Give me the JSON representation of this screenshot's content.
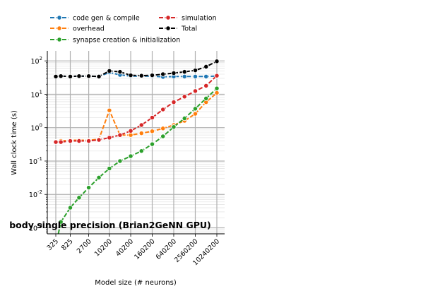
{
  "chart_data": {
    "type": "line",
    "title": "body single precision (Brian2GeNN GPU)",
    "xlabel": "Model size (# neurons)",
    "ylabel": "Wall clock time (s)",
    "x_scale": "log",
    "y_scale": "log",
    "ylim": [
      0.0005,
      200
    ],
    "grid": true,
    "legend_position": "top",
    "x": [
      325,
      450,
      825,
      1450,
      2700,
      5200,
      10200,
      20200,
      40200,
      80200,
      160200,
      320200,
      640200,
      1280200,
      2560200,
      5120200,
      10240200
    ],
    "x_tick_labels": [
      "325",
      "825",
      "2700",
      "10200",
      "40200",
      "160200",
      "640200",
      "2560200",
      "10240200"
    ],
    "y_tick_labels": [
      "10^{-3}",
      "10^{-2}",
      "10^{-1}",
      "10^{0}",
      "10^{1}",
      "10^{2}"
    ],
    "series": [
      {
        "name": "code gen & compile",
        "color": "#1f77b4",
        "values": [
          34,
          35,
          34,
          35,
          35,
          34,
          45,
          38,
          35,
          35,
          35,
          33,
          34,
          34,
          34,
          34,
          35
        ]
      },
      {
        "name": "overhead",
        "color": "#ff7f0e",
        "values": [
          0.38,
          0.4,
          0.42,
          0.42,
          0.42,
          0.45,
          3.3,
          0.6,
          0.6,
          0.68,
          0.78,
          0.95,
          1.2,
          1.6,
          2.6,
          5.8,
          11
        ]
      },
      {
        "name": "synapse creation & initialization",
        "color": "#2ca02c",
        "values": [
          0.0003,
          0.0015,
          0.004,
          0.008,
          0.016,
          0.032,
          0.06,
          0.1,
          0.14,
          0.2,
          0.32,
          0.55,
          1.05,
          1.9,
          3.7,
          7.5,
          15
        ]
      },
      {
        "name": "simulation",
        "color": "#d62728",
        "values": [
          0.37,
          0.37,
          0.4,
          0.4,
          0.4,
          0.43,
          0.5,
          0.6,
          0.8,
          1.2,
          2.0,
          3.5,
          5.8,
          8.5,
          12.5,
          18,
          36
        ]
      },
      {
        "name": "Total",
        "color": "#000000",
        "values": [
          34,
          35,
          34,
          35,
          35,
          34,
          50,
          47,
          37,
          36,
          37,
          40,
          43,
          47,
          52,
          67,
          97
        ]
      }
    ]
  }
}
